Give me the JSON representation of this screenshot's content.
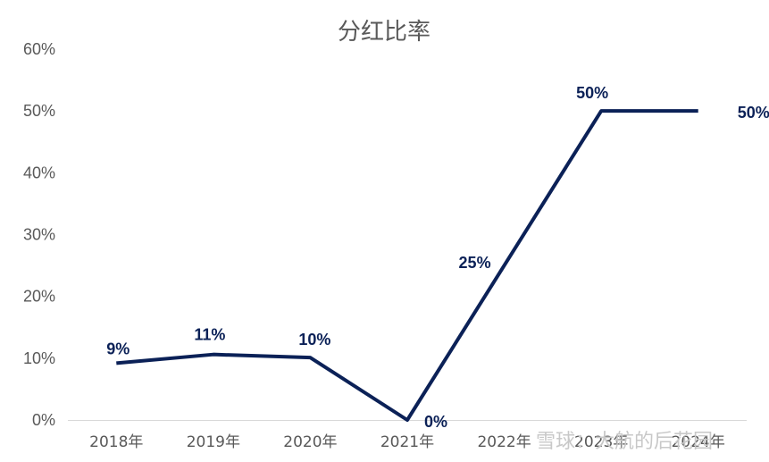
{
  "chart_data": {
    "type": "line",
    "title": "分红比率",
    "categories": [
      "2018年",
      "2019年",
      "2020年",
      "2021年",
      "2022年",
      "2023年",
      "2024年"
    ],
    "series": [
      {
        "values": [
          9.2,
          10.6,
          10.1,
          0,
          25,
          50,
          50
        ]
      }
    ],
    "data_labels": [
      "9%",
      "11%",
      "10%",
      "0%",
      "25%",
      "50%",
      "50%"
    ],
    "yticks": [
      "0%",
      "10%",
      "20%",
      "30%",
      "40%",
      "50%",
      "60%"
    ],
    "ylim": [
      0,
      60
    ],
    "grid": false,
    "line_color": "#0b2157"
  },
  "watermark": "雪球：大航的后花园"
}
